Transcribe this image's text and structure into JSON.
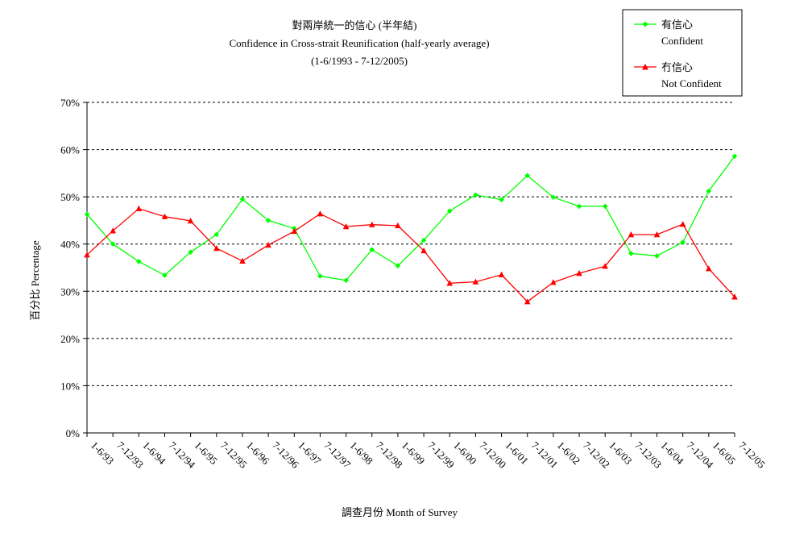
{
  "chart_data": {
    "type": "line",
    "title": "對兩岸統一的信心 (半年結)",
    "subtitle": "Confidence in Cross-strait Reunification (half-yearly average)",
    "period": "(1-6/1993 - 7-12/2005)",
    "xlabel": "調查月份 Month of Survey",
    "ylabel": "百分比 Percentage",
    "ylim": [
      0,
      70
    ],
    "y_ticks": [
      0,
      10,
      20,
      30,
      40,
      50,
      60,
      70
    ],
    "y_tick_labels": [
      "0%",
      "10%",
      "20%",
      "30%",
      "40%",
      "50%",
      "60%",
      "70%"
    ],
    "grid": true,
    "legend_position": "top-right",
    "categories": [
      "1-6/93",
      "7-12/93",
      "1-6/94",
      "7-12/94",
      "1-6/95",
      "7-12/95",
      "1-6/96",
      "7-12/96",
      "1-6/97",
      "7-12/97",
      "1-6/98",
      "7-12/98",
      "1-6/99",
      "7-12/99",
      "1-6/00",
      "7-12/00",
      "1-6/01",
      "7-12/01",
      "1-6/02",
      "7-12/02",
      "1-6/03",
      "7-12/03",
      "1-6/04",
      "7-12/04",
      "1-6/05",
      "7-12/05"
    ],
    "series": [
      {
        "name": "有信心",
        "name_en": "Confident",
        "color": "#00ff00",
        "marker": "diamond",
        "values": [
          46.3,
          40.0,
          36.3,
          33.4,
          38.3,
          42.0,
          49.5,
          45.0,
          43.3,
          33.2,
          32.3,
          38.8,
          35.4,
          40.8,
          47.0,
          50.4,
          49.4,
          54.5,
          49.9,
          48.0,
          48.0,
          38.0,
          37.5,
          40.4,
          51.2,
          58.6
        ]
      },
      {
        "name": "冇信心",
        "name_en": "Not Confident",
        "color": "#ff0000",
        "marker": "triangle",
        "values": [
          37.7,
          42.8,
          47.5,
          45.8,
          44.9,
          39.1,
          36.4,
          39.8,
          42.7,
          46.4,
          43.7,
          44.1,
          43.9,
          38.6,
          31.7,
          32.0,
          33.5,
          27.8,
          31.9,
          33.8,
          35.3,
          42.0,
          42.0,
          44.2,
          34.8,
          28.8
        ]
      }
    ]
  }
}
